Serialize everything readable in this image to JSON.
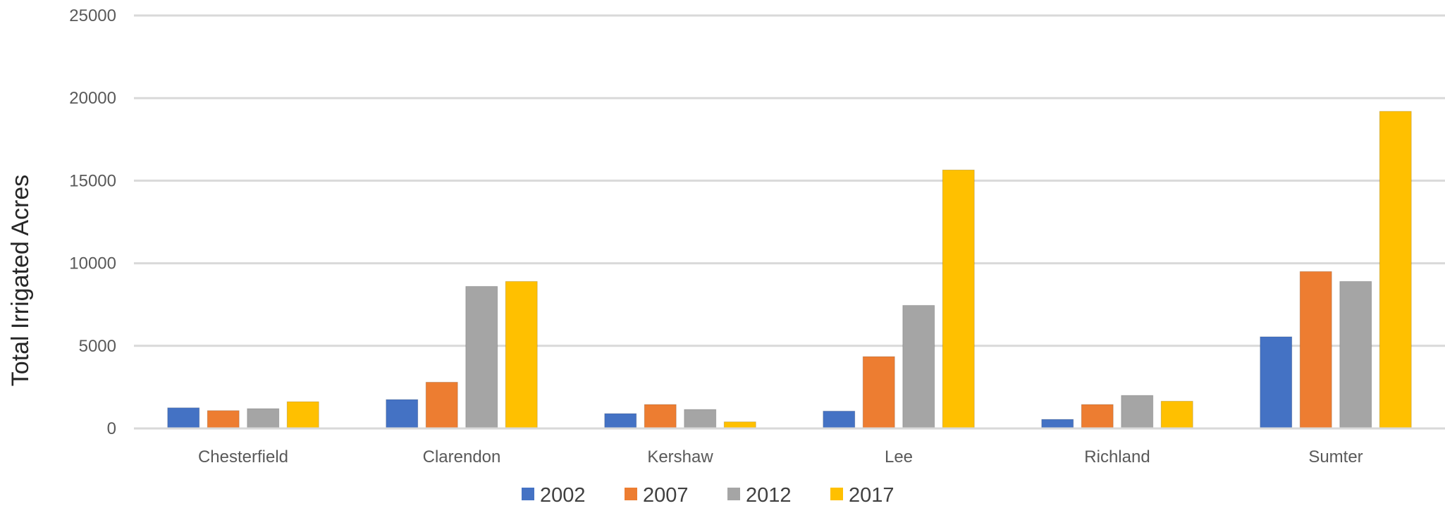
{
  "chart_data": {
    "type": "bar",
    "title": "",
    "xlabel": "",
    "ylabel": "Total Irrigated Acres",
    "ylim": [
      0,
      25000
    ],
    "yticks": [
      0,
      5000,
      10000,
      15000,
      20000,
      25000
    ],
    "grid": true,
    "legend_position": "bottom",
    "categories": [
      "Chesterfield",
      "Clarendon",
      "Kershaw",
      "Lee",
      "Richland",
      "Sumter"
    ],
    "series": [
      {
        "name": "2002",
        "color": "#4472C4",
        "values": [
          1250,
          1750,
          900,
          1050,
          550,
          5550
        ]
      },
      {
        "name": "2007",
        "color": "#ED7D31",
        "values": [
          1080,
          2800,
          1450,
          4350,
          1450,
          9500
        ]
      },
      {
        "name": "2012",
        "color": "#A5A5A5",
        "values": [
          1200,
          8600,
          1150,
          7450,
          2000,
          8900
        ]
      },
      {
        "name": "2017",
        "color": "#FFC000",
        "values": [
          1620,
          8900,
          400,
          15650,
          1650,
          19200
        ]
      }
    ]
  }
}
